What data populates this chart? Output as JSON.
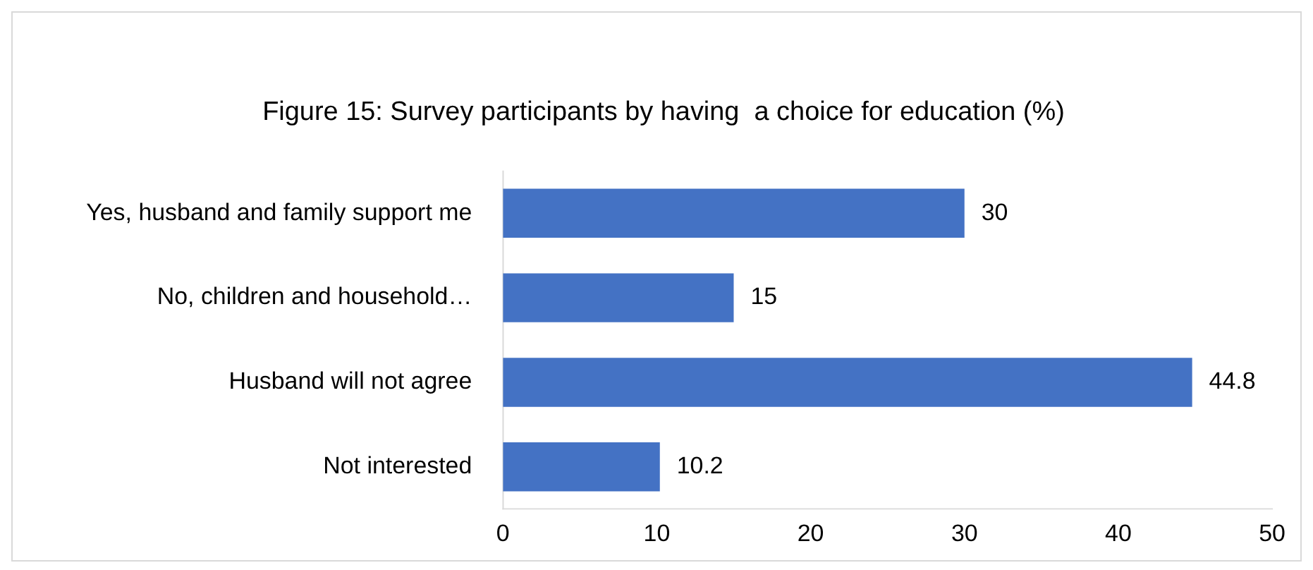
{
  "chart_data": {
    "type": "bar",
    "orientation": "horizontal",
    "title": "Figure 15: Survey participants by having  a choice for education (%)",
    "categories": [
      "Yes, husband and family support me",
      "No, children and household…",
      "Husband will not agree",
      "Not interested"
    ],
    "values": [
      30,
      15,
      44.8,
      10.2
    ],
    "color": "#4472c4",
    "xlim": [
      0,
      50
    ],
    "xticks": [
      0,
      10,
      20,
      30,
      40,
      50
    ],
    "grid": false,
    "legend": false,
    "data_labels": true
  }
}
